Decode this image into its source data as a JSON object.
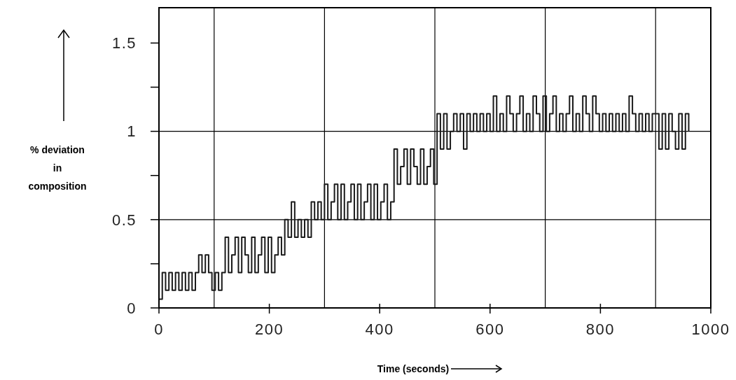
{
  "chart_data": {
    "type": "step",
    "xlabel": "Time (seconds)",
    "ylabel": "% deviation in composition",
    "xlim": [
      0,
      1000
    ],
    "ylim": [
      0,
      1.7
    ],
    "xticks": [
      0,
      200,
      400,
      600,
      800,
      1000
    ],
    "yticks": [
      0,
      {
        "value": 0.25,
        "label": null
      },
      0.5,
      {
        "value": 0.75,
        "label": null
      },
      1,
      {
        "value": 1.25,
        "label": null
      },
      1.5
    ],
    "ref_lines": [
      {
        "axis": "x",
        "value": 100
      },
      {
        "axis": "x",
        "value": 300
      },
      {
        "axis": "x",
        "value": 500
      },
      {
        "axis": "x",
        "value": 700
      },
      {
        "axis": "x",
        "value": 900
      },
      {
        "axis": "y",
        "value": 0.5
      },
      {
        "axis": "y",
        "value": 1
      }
    ],
    "series": [
      {
        "color": "#1a1a1a",
        "x": [
          0,
          6,
          12,
          18,
          24,
          30,
          36,
          42,
          48,
          54,
          60,
          66,
          72,
          78,
          84,
          90,
          96,
          102,
          108,
          114,
          120,
          126,
          132,
          138,
          144,
          150,
          156,
          162,
          168,
          174,
          180,
          186,
          192,
          198,
          204,
          210,
          216,
          222,
          228,
          234,
          240,
          246,
          252,
          258,
          264,
          270,
          276,
          282,
          288,
          294,
          300,
          306,
          312,
          318,
          324,
          330,
          336,
          342,
          348,
          354,
          360,
          366,
          372,
          378,
          384,
          390,
          396,
          402,
          408,
          414,
          420,
          426,
          432,
          438,
          444,
          450,
          456,
          462,
          468,
          474,
          480,
          486,
          492,
          498,
          504,
          510,
          516,
          522,
          528,
          534,
          540,
          546,
          552,
          558,
          564,
          570,
          576,
          582,
          588,
          594,
          600,
          606,
          612,
          618,
          624,
          630,
          636,
          642,
          648,
          654,
          660,
          666,
          672,
          678,
          684,
          690,
          696,
          702,
          708,
          714,
          720,
          726,
          732,
          738,
          744,
          750,
          756,
          762,
          768,
          774,
          780,
          786,
          792,
          798,
          804,
          810,
          816,
          822,
          828,
          834,
          840,
          846,
          852,
          858,
          864,
          870,
          876,
          882,
          888,
          894,
          900,
          906,
          912,
          918,
          924,
          930,
          936,
          942,
          948,
          954,
          960
        ],
        "values": [
          0.05,
          0.2,
          0.1,
          0.2,
          0.1,
          0.2,
          0.1,
          0.2,
          0.1,
          0.2,
          0.1,
          0.2,
          0.3,
          0.2,
          0.3,
          0.2,
          0.1,
          0.2,
          0.1,
          0.2,
          0.4,
          0.2,
          0.3,
          0.4,
          0.2,
          0.4,
          0.3,
          0.2,
          0.4,
          0.2,
          0.3,
          0.4,
          0.2,
          0.4,
          0.2,
          0.3,
          0.4,
          0.3,
          0.5,
          0.4,
          0.6,
          0.4,
          0.5,
          0.4,
          0.5,
          0.4,
          0.6,
          0.5,
          0.6,
          0.5,
          0.7,
          0.5,
          0.6,
          0.7,
          0.5,
          0.7,
          0.5,
          0.6,
          0.7,
          0.5,
          0.7,
          0.5,
          0.6,
          0.7,
          0.5,
          0.7,
          0.5,
          0.6,
          0.7,
          0.5,
          0.6,
          0.9,
          0.7,
          0.8,
          0.9,
          0.7,
          0.9,
          0.8,
          0.7,
          0.9,
          0.7,
          0.8,
          0.9,
          0.7,
          1.1,
          0.9,
          1.1,
          0.9,
          1.0,
          1.1,
          1.0,
          1.1,
          0.9,
          1.1,
          1.0,
          1.1,
          1.0,
          1.1,
          1.0,
          1.1,
          1.0,
          1.2,
          1.0,
          1.1,
          1.0,
          1.2,
          1.1,
          1.0,
          1.1,
          1.2,
          1.0,
          1.1,
          1.0,
          1.2,
          1.1,
          1.0,
          1.2,
          1.0,
          1.1,
          1.2,
          1.0,
          1.1,
          1.0,
          1.1,
          1.2,
          1.0,
          1.1,
          1.0,
          1.2,
          1.1,
          1.0,
          1.2,
          1.1,
          1.0,
          1.1,
          1.0,
          1.1,
          1.0,
          1.1,
          1.0,
          1.1,
          1.0,
          1.2,
          1.1,
          1.0,
          1.1,
          1.0,
          1.1,
          1.0,
          1.1,
          1.1,
          0.9,
          1.1,
          0.9,
          1.1,
          1.0,
          0.9,
          1.1,
          0.9,
          1.1,
          1.0
        ]
      }
    ]
  }
}
